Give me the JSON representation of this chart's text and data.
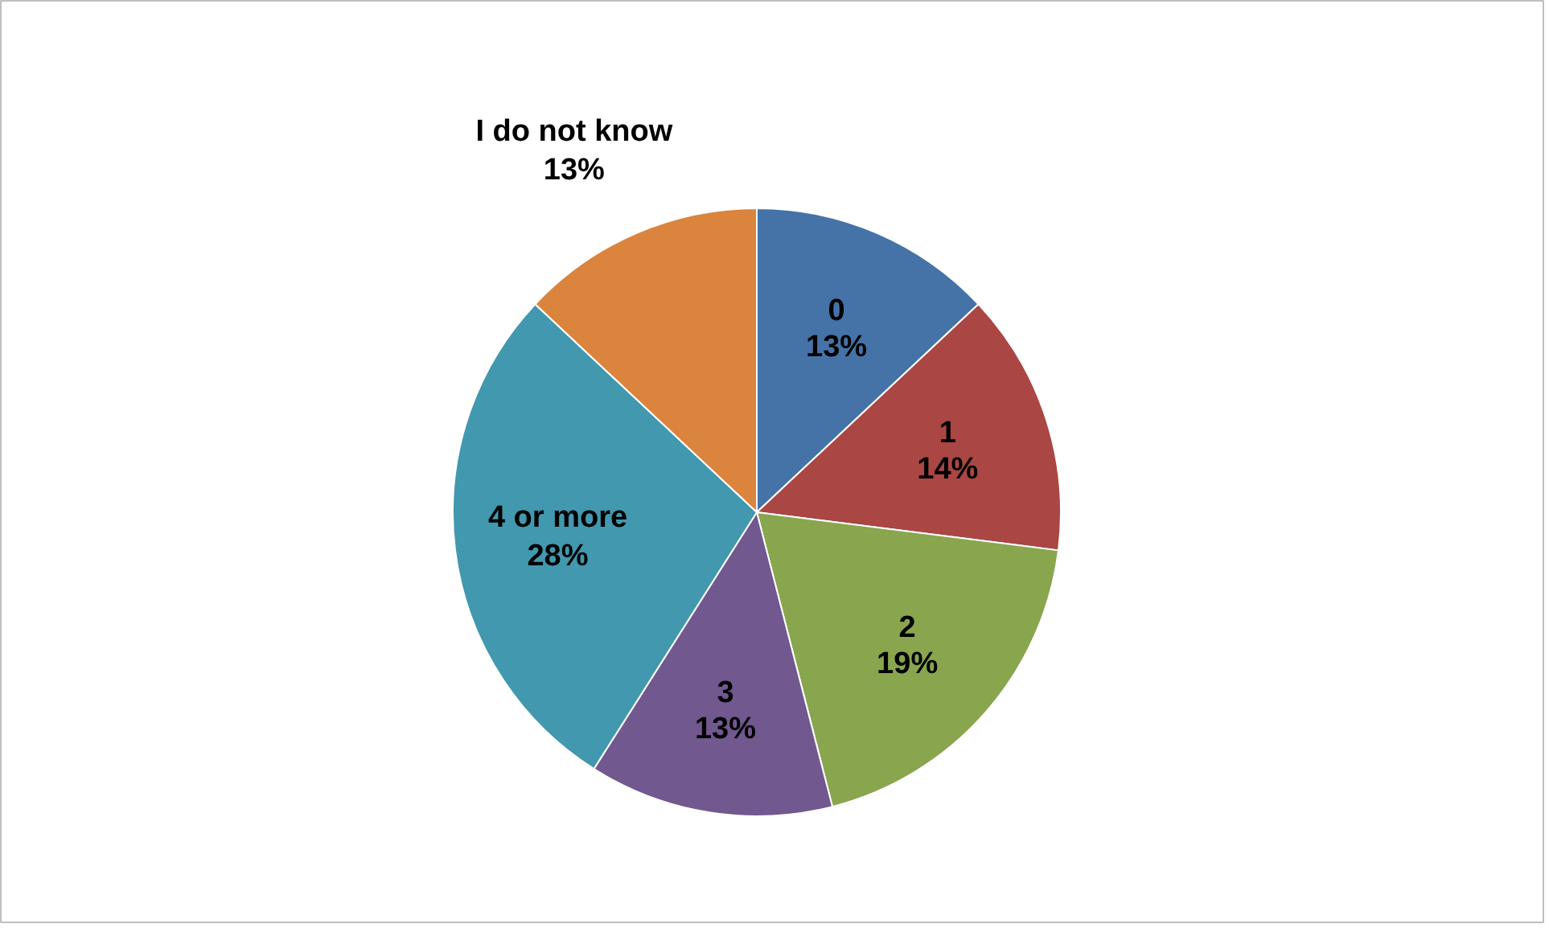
{
  "chart_data": {
    "type": "pie",
    "categories": [
      "0",
      "1",
      "2",
      "3",
      "4 or more",
      "I do not know"
    ],
    "values": [
      13,
      14,
      19,
      13,
      28,
      13
    ],
    "value_labels": [
      "13%",
      "14%",
      "19%",
      "13%",
      "28%",
      "13%"
    ],
    "colors": [
      "#4572a7",
      "#aa4643",
      "#89a54e",
      "#71588f",
      "#4198af",
      "#db843d"
    ]
  }
}
